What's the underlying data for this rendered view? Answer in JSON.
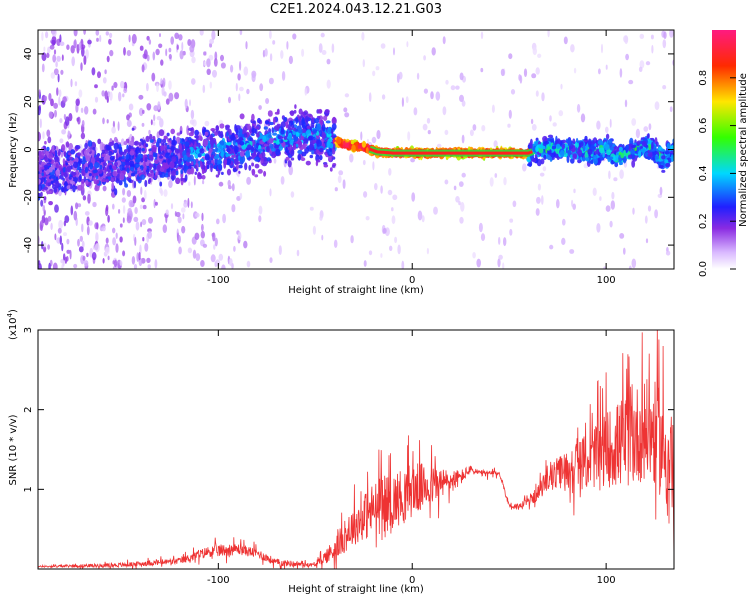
{
  "figure_title": "C2E1.2024.043.12.21.G03",
  "colors": {
    "snr_line": "#ee3333",
    "axis": "#000000",
    "background": "#ffffff"
  },
  "chart_data": [
    {
      "type": "heatmap",
      "title": "",
      "xlabel": "Height of straight line (km)",
      "ylabel": "Frequency (Hz)",
      "xlim": [
        -193,
        135
      ],
      "ylim": [
        -50,
        50
      ],
      "x_ticks": [
        -100,
        0,
        100
      ],
      "y_ticks": [
        -40,
        -20,
        0,
        20,
        40
      ],
      "colorbar": {
        "label": "Normalized spectral amplitude",
        "range": [
          0,
          1
        ],
        "ticks": [
          0.0,
          0.2,
          0.4,
          0.6,
          0.8
        ],
        "colormap": "rainbow (white/violet -> blue -> cyan -> green -> yellow -> red -> magenta)"
      },
      "ridge_centerline": {
        "x": [
          -193,
          -170,
          -150,
          -130,
          -110,
          -90,
          -70,
          -55,
          -45,
          -35,
          -25,
          -18,
          -10,
          0,
          10,
          20,
          40,
          60,
          65,
          75,
          85,
          95,
          100,
          105,
          110,
          115,
          120,
          125,
          130,
          135
        ],
        "y": [
          -10,
          -8,
          -6,
          -4,
          -2,
          1,
          4,
          6,
          5,
          2,
          1,
          -1,
          -1.5,
          -1.5,
          -1.5,
          -1.5,
          -1.5,
          -1.5,
          0,
          0,
          0,
          -1,
          1,
          -3,
          -2,
          0,
          1,
          0,
          -4,
          0
        ]
      }
    },
    {
      "type": "line",
      "title": "",
      "xlabel": "Height of straight line (km)",
      "ylabel": "SNR (10 * v/v)",
      "y_multiplier_label": "(x10",
      "y_multiplier_exp": "4",
      "y_multiplier_close": ")",
      "xlim": [
        -193,
        135
      ],
      "ylim": [
        0,
        3
      ],
      "x_ticks": [
        -100,
        0,
        100
      ],
      "y_ticks": [
        1,
        2,
        3
      ],
      "series": [
        {
          "color": "#ee3333",
          "envelope": {
            "x": [
              -193,
              -150,
              -120,
              -105,
              -90,
              -80,
              -70,
              -50,
              -40,
              -30,
              -20,
              -10,
              0,
              10,
              20,
              25,
              30,
              35,
              40,
              45,
              50,
              55,
              60,
              65,
              70,
              80,
              90,
              100,
              110,
              120,
              125,
              130,
              135
            ],
            "y": [
              0.03,
              0.05,
              0.1,
              0.22,
              0.25,
              0.2,
              0.08,
              0.05,
              0.25,
              0.55,
              0.75,
              0.85,
              1.0,
              1.05,
              1.1,
              1.15,
              1.25,
              1.2,
              1.2,
              1.2,
              0.8,
              0.78,
              0.85,
              0.95,
              1.15,
              1.25,
              1.35,
              1.5,
              1.6,
              1.75,
              1.7,
              1.5,
              1.2
            ]
          },
          "noise_amplitude": {
            "x": [
              -193,
              -120,
              -100,
              -80,
              -50,
              -40,
              -20,
              0,
              20,
              30,
              45,
              50,
              60,
              70,
              90,
              110,
              135
            ],
            "y": [
              0.01,
              0.04,
              0.08,
              0.06,
              0.02,
              0.15,
              0.35,
              0.35,
              0.15,
              0.05,
              0.03,
              0.04,
              0.05,
              0.15,
              0.35,
              0.6,
              0.7
            ]
          }
        }
      ]
    }
  ]
}
